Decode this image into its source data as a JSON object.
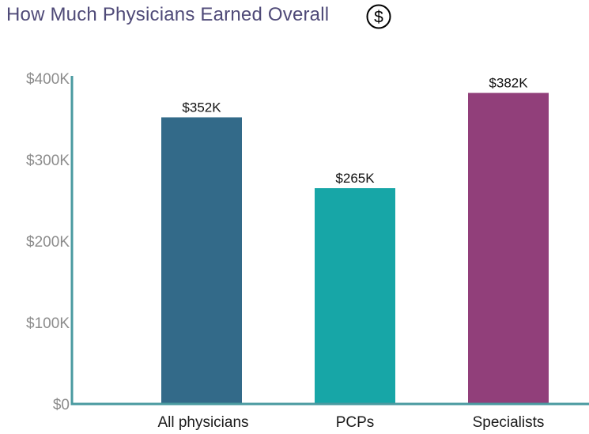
{
  "title": "How Much Physicians Earned Overall",
  "title_icon": "dollar-circle-icon",
  "colors": {
    "title": "#4f4a78",
    "axis": "#4a9aa0",
    "tick_text": "#8c8c8c",
    "category_text": "#1a1a1a",
    "value_text": "#111111"
  },
  "chart_data": {
    "type": "bar",
    "title": "How Much Physicians Earned Overall",
    "categories": [
      "All physicians",
      "PCPs",
      "Specialists"
    ],
    "values": [
      352,
      265,
      382
    ],
    "value_labels": [
      "$352K",
      "$265K",
      "$382K"
    ],
    "bar_colors": [
      "#336a89",
      "#17a6a7",
      "#913f7a"
    ],
    "unit": "thousands of USD",
    "ylim": [
      0,
      400
    ],
    "yticks": [
      0,
      100,
      200,
      300,
      400
    ],
    "ytick_labels": [
      "$0",
      "$100K",
      "$200K",
      "$300K",
      "$400K"
    ],
    "xlabel": "",
    "ylabel": "",
    "grid": false,
    "legend": "none"
  }
}
